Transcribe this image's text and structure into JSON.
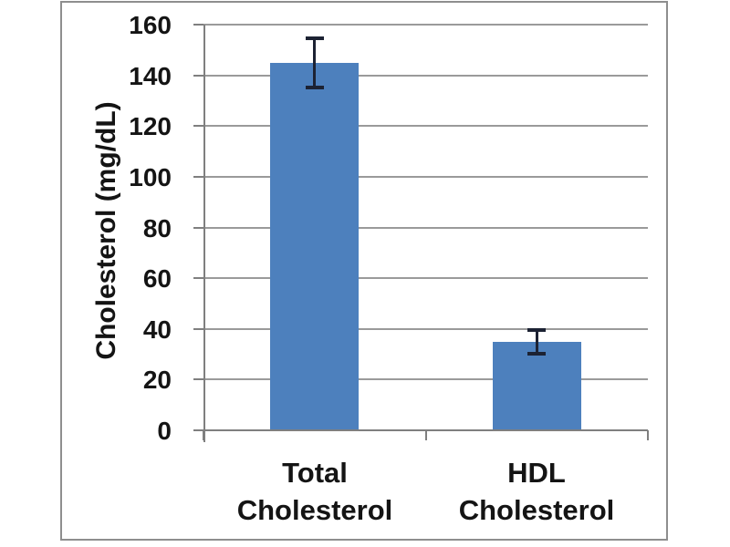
{
  "chart_data": {
    "type": "bar",
    "title": "",
    "xlabel": "",
    "ylabel": "Cholesterol (mg/dL)",
    "categories": [
      "Total\nCholesterol",
      "HDL\nCholesterol"
    ],
    "values": [
      145,
      35
    ],
    "error_bars": [
      10,
      5
    ],
    "ylim": [
      0,
      160
    ],
    "ytick_step": 20,
    "ytick_labels": [
      "0",
      "20",
      "40",
      "60",
      "80",
      "100",
      "120",
      "140",
      "160"
    ],
    "grid": "horizontal",
    "legend": "none",
    "colors": {
      "bar_fill": "#4d80bd",
      "error_bar": "#1c2233",
      "gridline": "#9a9a9a",
      "axis": "#7f7f7f",
      "text": "#141414",
      "frame_border": "#8e8e8e",
      "background": "#ffffff"
    }
  }
}
